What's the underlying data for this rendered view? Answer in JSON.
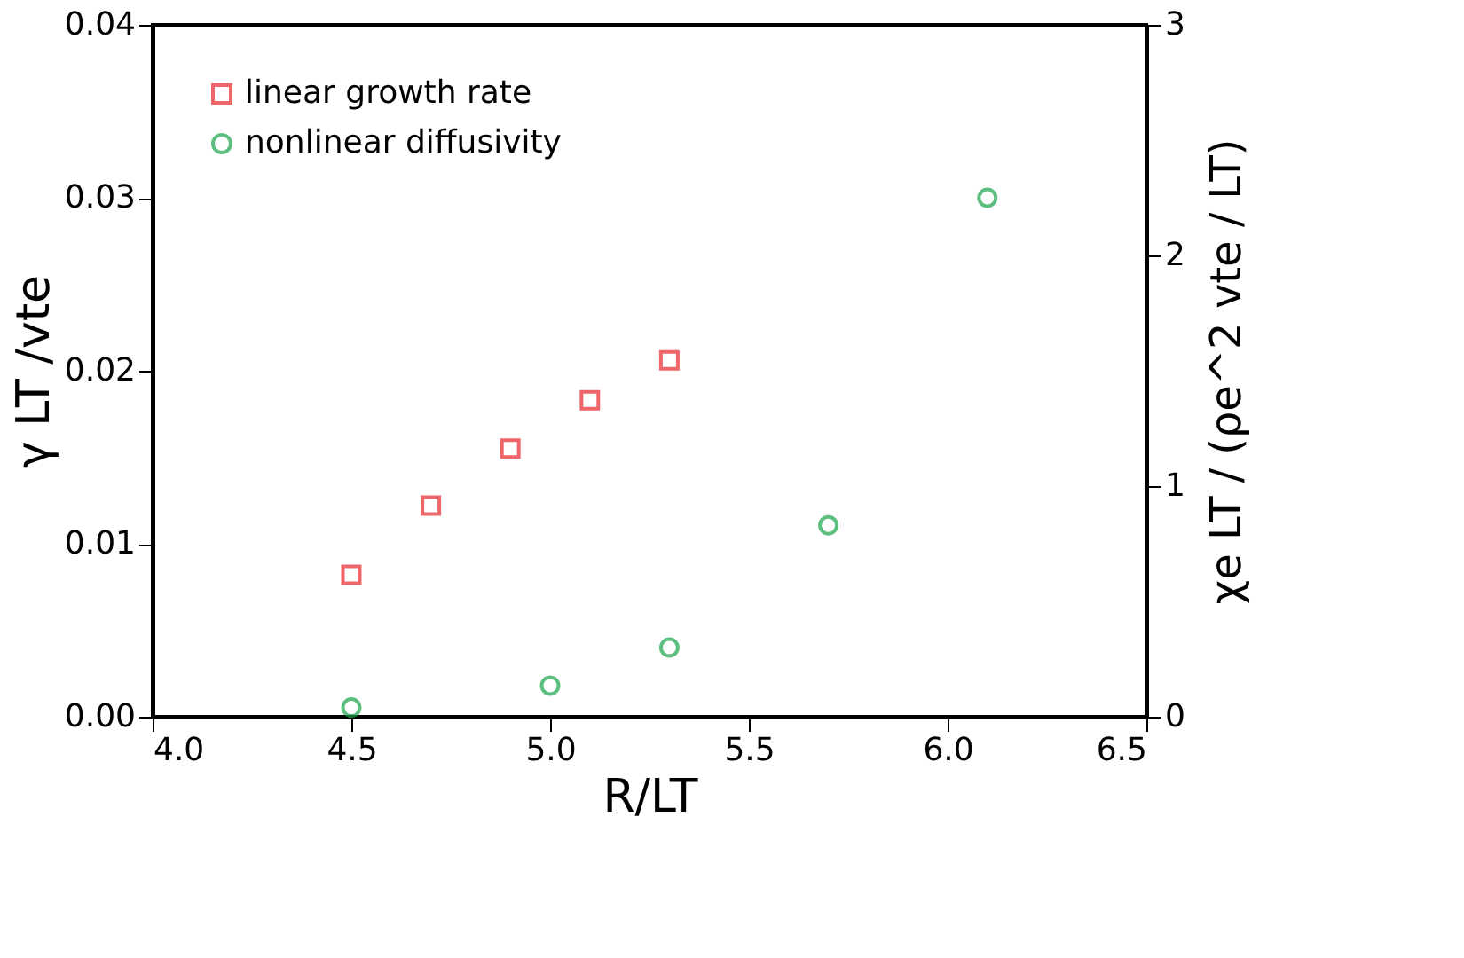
{
  "chart_data": {
    "type": "scatter",
    "xlabel": "R/LT",
    "ylabel": "γ LT /vte",
    "y2label": "χe LT / (ρe^2 vte / LT)",
    "xlim": [
      4.0,
      6.5
    ],
    "xticks": [
      {
        "value": 4.0,
        "label": "4.0"
      },
      {
        "value": 4.5,
        "label": "4.5"
      },
      {
        "value": 5.0,
        "label": "5.0"
      },
      {
        "value": 5.5,
        "label": "5.5"
      },
      {
        "value": 6.0,
        "label": "6.0"
      },
      {
        "value": 6.5,
        "label": "6.5"
      }
    ],
    "ylim": [
      0,
      0.04
    ],
    "yticks": [
      {
        "value": 0,
        "label": "0.00"
      },
      {
        "value": 0.01,
        "label": "0.01"
      },
      {
        "value": 0.02,
        "label": "0.02"
      },
      {
        "value": 0.03,
        "label": "0.03"
      },
      {
        "value": 0.04,
        "label": "0.04"
      }
    ],
    "y2lim": [
      0,
      3
    ],
    "y2ticks": [
      0,
      1,
      2,
      3
    ],
    "series": [
      {
        "name": "linear growth rate",
        "color": "#e8262a",
        "marker": "square",
        "x": [
          4.5,
          4.7,
          4.9,
          5.1,
          5.3
        ],
        "values": [
          0.0082,
          0.0122,
          0.0155,
          0.0183,
          0.0206
        ]
      },
      {
        "name": "nonlinear diffusivity",
        "color": "#1aa34a",
        "marker": "circle",
        "axis": "y2",
        "x": [
          4.5,
          5.0,
          5.3,
          5.7,
          6.1
        ],
        "values": [
          0.04,
          0.135,
          0.3,
          0.83,
          2.25
        ]
      }
    ],
    "legend": "top left",
    "grid": false
  }
}
